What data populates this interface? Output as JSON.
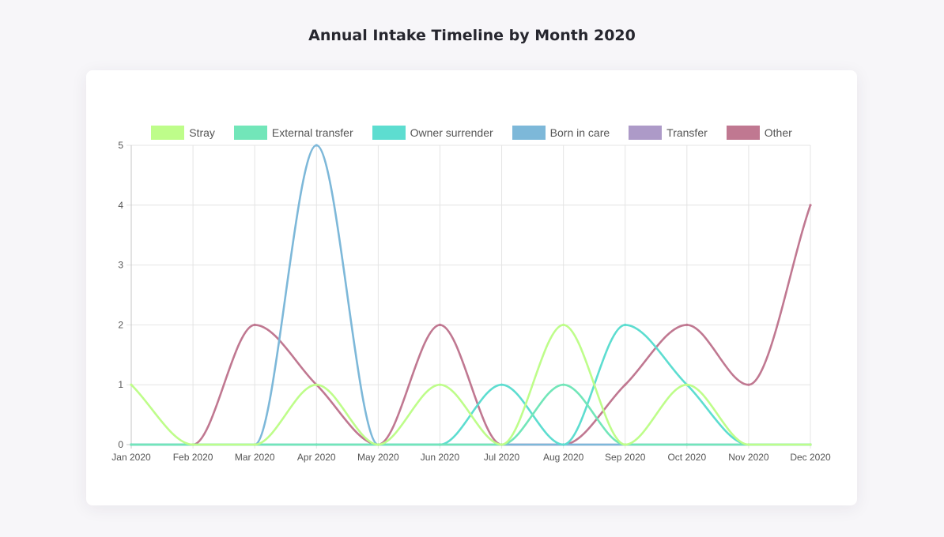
{
  "page": {
    "title": "Annual Intake Timeline by Month 2020"
  },
  "chart_data": {
    "type": "line",
    "title": "Annual Intake Timeline by Month 2020",
    "xlabel": "",
    "ylabel": "",
    "categories": [
      "Jan 2020",
      "Feb 2020",
      "Mar 2020",
      "Apr 2020",
      "May 2020",
      "Jun 2020",
      "Jul 2020",
      "Aug 2020",
      "Sep 2020",
      "Oct 2020",
      "Nov 2020",
      "Dec 2020"
    ],
    "ylim": [
      0,
      5
    ],
    "yticks": [
      "0",
      "1",
      "2",
      "3",
      "4",
      "5"
    ],
    "grid": true,
    "legend_position": "top",
    "series": [
      {
        "name": "Stray",
        "color": "#befd8a",
        "values": [
          1,
          0,
          0,
          1,
          0,
          1,
          0,
          2,
          0,
          1,
          0,
          0
        ]
      },
      {
        "name": "External transfer",
        "color": "#72e6b9",
        "values": [
          0,
          0,
          0,
          0,
          0,
          0,
          0,
          1,
          0,
          0,
          0,
          0
        ]
      },
      {
        "name": "Owner surrender",
        "color": "#5dddd0",
        "values": [
          0,
          0,
          0,
          0,
          0,
          0,
          1,
          0,
          2,
          1,
          0,
          0
        ]
      },
      {
        "name": "Born in care",
        "color": "#7db8d9",
        "values": [
          0,
          0,
          0,
          5,
          0,
          0,
          0,
          0,
          0,
          0,
          0,
          0
        ]
      },
      {
        "name": "Transfer",
        "color": "#ad9ac8",
        "values": [
          0,
          0,
          0,
          0,
          0,
          0,
          0,
          0,
          0,
          0,
          0,
          0
        ]
      },
      {
        "name": "Other",
        "color": "#c07891",
        "values": [
          0,
          0,
          2,
          1,
          0,
          2,
          0,
          0,
          1,
          2,
          1,
          4
        ]
      }
    ]
  }
}
